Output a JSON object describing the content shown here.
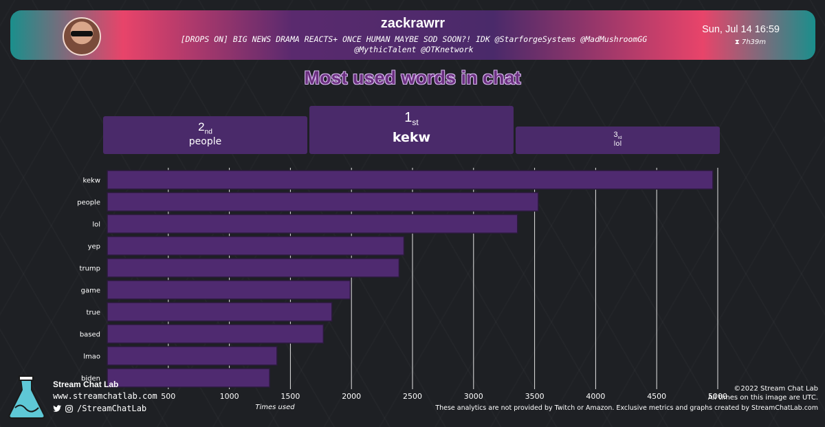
{
  "header": {
    "streamer": "zackrawrr",
    "title_line1": "[DROPS ON] BIG NEWS DRAMA REACTS+ ONCE HUMAN MAYBE SOD SOON?! IDK @StarforgeSystems @MadMushroomGG",
    "title_line2": "@MythicTalent @OTKnetwork",
    "date": "Sun, Jul 14 16:59",
    "duration": "7h39m"
  },
  "page_title": "Most used words in chat",
  "podium": {
    "first": {
      "num": "1",
      "suffix": "st",
      "word": "kekw"
    },
    "second": {
      "num": "2",
      "suffix": "nd",
      "word": "people"
    },
    "third": {
      "num": "3",
      "suffix": "rd",
      "word": "lol"
    }
  },
  "chart_data": {
    "type": "bar",
    "orientation": "horizontal",
    "categories": [
      "kekw",
      "people",
      "lol",
      "yep",
      "trump",
      "game",
      "true",
      "based",
      "lmao",
      "biden"
    ],
    "values": [
      4960,
      3530,
      3360,
      2430,
      2390,
      1990,
      1840,
      1770,
      1390,
      1330
    ],
    "xlabel": "Times used",
    "xlim": [
      0,
      5000
    ],
    "xticks": [
      500,
      1000,
      1500,
      2000,
      2500,
      3000,
      3500,
      4000,
      4500,
      5000
    ],
    "grid": true,
    "bar_color": "#4f2a70"
  },
  "footer": {
    "brand": "Stream Chat Lab",
    "site": "www.streamchatlab.com",
    "social": "/StreamChatLab",
    "copyright": "©2022 Stream Chat Lab",
    "timezone": "All times on this image are UTC.",
    "disclaimer": "These analytics are not provided by Twitch or Amazon. Exclusive metrics and graphs created by StreamChatLab.com"
  }
}
